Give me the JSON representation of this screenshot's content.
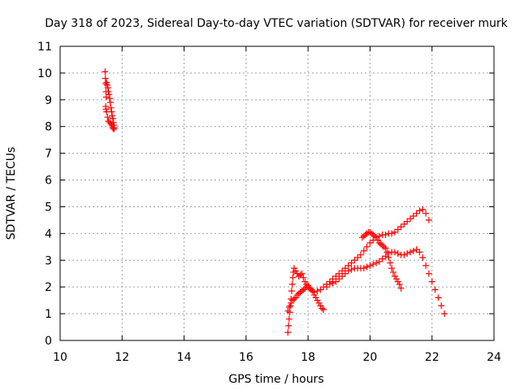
{
  "chart_data": {
    "type": "scatter",
    "title": "Day 318 of 2023, Sidereal Day-to-day VTEC variation (SDTVAR) for receiver murk",
    "xlabel": "GPS time / hours",
    "ylabel": "SDTVAR / TECUs",
    "xlim": [
      10,
      24
    ],
    "ylim": [
      0,
      11
    ],
    "xticks": [
      10,
      12,
      14,
      16,
      18,
      20,
      22,
      24
    ],
    "yticks": [
      0,
      1,
      2,
      3,
      4,
      5,
      6,
      7,
      8,
      9,
      10,
      11
    ],
    "grid": true,
    "marker": "+",
    "color": "#ff0000",
    "series": [
      {
        "x": [
          11.45,
          11.46,
          11.47,
          11.48,
          11.49,
          11.5,
          11.52,
          11.54,
          11.56,
          11.58,
          11.6,
          11.62,
          11.64,
          11.66,
          11.68,
          11.7,
          11.72,
          11.74,
          11.75,
          11.73,
          11.7,
          11.67,
          11.64,
          11.6,
          11.56,
          11.53,
          11.5,
          11.48,
          11.47
        ],
        "y": [
          10.05,
          9.8,
          9.6,
          9.3,
          9.1,
          9.65,
          9.55,
          9.45,
          9.3,
          9.2,
          9.05,
          8.9,
          8.7,
          8.55,
          8.4,
          8.3,
          8.15,
          8.05,
          7.95,
          7.9,
          7.95,
          8.05,
          8.1,
          8.15,
          8.2,
          8.35,
          8.55,
          8.65,
          8.75
        ]
      },
      {
        "x": [
          17.35,
          17.37,
          17.39,
          17.41,
          17.43,
          17.45,
          17.47,
          17.49,
          17.51,
          17.53,
          17.55,
          17.6,
          17.65,
          17.7,
          17.75,
          17.8,
          17.85,
          17.9,
          17.95,
          18.0,
          18.05,
          18.1,
          18.15,
          18.2,
          18.25,
          18.3,
          18.35,
          18.4,
          18.45,
          18.5
        ],
        "y": [
          0.3,
          0.55,
          0.8,
          1.05,
          1.3,
          1.55,
          1.85,
          2.1,
          2.35,
          2.55,
          2.7,
          2.6,
          2.5,
          2.4,
          2.45,
          2.5,
          2.35,
          2.2,
          2.1,
          2.05,
          1.95,
          1.9,
          1.85,
          1.7,
          1.6,
          1.5,
          1.4,
          1.3,
          1.2,
          1.15
        ]
      },
      {
        "x": [
          17.35,
          17.4,
          17.45,
          17.5,
          17.55,
          17.6,
          17.65,
          17.7,
          17.75,
          17.8,
          17.85,
          17.9,
          17.95,
          18.0,
          18.05,
          18.1,
          18.15,
          18.2,
          18.3,
          18.4,
          18.5,
          18.6,
          18.7,
          18.8,
          18.9,
          19.0,
          19.1,
          19.2,
          19.3,
          19.4,
          19.5,
          19.6,
          19.7,
          19.8,
          19.9,
          20.0,
          20.1,
          20.2,
          20.3,
          20.4,
          20.5,
          20.6,
          20.7,
          20.8,
          20.9,
          21.0,
          21.1,
          21.2,
          21.3,
          21.4,
          21.5,
          21.6,
          21.7,
          21.8,
          21.9
        ],
        "y": [
          1.1,
          1.25,
          1.4,
          1.5,
          1.55,
          1.6,
          1.7,
          1.75,
          1.8,
          1.85,
          1.9,
          1.95,
          2.0,
          2.0,
          1.95,
          1.9,
          1.85,
          1.8,
          1.85,
          1.9,
          2.0,
          2.1,
          2.2,
          2.3,
          2.4,
          2.5,
          2.6,
          2.7,
          2.8,
          2.9,
          3.0,
          3.1,
          3.2,
          3.35,
          3.5,
          3.65,
          3.75,
          3.85,
          3.9,
          3.95,
          3.95,
          4.0,
          4.0,
          4.05,
          4.15,
          4.25,
          4.35,
          4.45,
          4.55,
          4.65,
          4.75,
          4.85,
          4.9,
          4.75,
          4.5
        ]
      },
      {
        "x": [
          18.6,
          18.7,
          18.8,
          18.9,
          19.0,
          19.1,
          19.2,
          19.3,
          19.4,
          19.5,
          19.6,
          19.7,
          19.8,
          19.9,
          20.0,
          20.1,
          20.2,
          20.3,
          20.4,
          20.5,
          20.6,
          20.7,
          20.8,
          20.9,
          21.0,
          21.1,
          21.2,
          21.3,
          21.4,
          21.5,
          21.6,
          21.7,
          21.8,
          21.9,
          22.0,
          22.1,
          22.2,
          22.3,
          22.4
        ],
        "y": [
          2.0,
          2.1,
          2.15,
          2.2,
          2.3,
          2.4,
          2.5,
          2.6,
          2.65,
          2.7,
          2.7,
          2.7,
          2.7,
          2.75,
          2.8,
          2.85,
          2.9,
          2.95,
          3.05,
          3.15,
          3.25,
          3.3,
          3.3,
          3.25,
          3.2,
          3.2,
          3.25,
          3.3,
          3.35,
          3.4,
          3.3,
          3.1,
          2.8,
          2.5,
          2.2,
          1.9,
          1.6,
          1.3,
          1.0
        ]
      },
      {
        "x": [
          19.75,
          19.8,
          19.85,
          19.9,
          19.95,
          20.0,
          20.05,
          20.1,
          20.15,
          20.2,
          20.25,
          20.3,
          20.35,
          20.4,
          20.45,
          20.5,
          20.55,
          20.6,
          20.65,
          20.7,
          20.75,
          20.8,
          20.85,
          20.9,
          20.95,
          21.0
        ],
        "y": [
          3.85,
          3.9,
          3.95,
          4.0,
          4.05,
          4.05,
          4.0,
          3.95,
          3.9,
          3.85,
          3.75,
          3.65,
          3.6,
          3.55,
          3.5,
          3.45,
          3.3,
          3.1,
          2.9,
          2.7,
          2.55,
          2.4,
          2.3,
          2.2,
          2.1,
          1.95
        ]
      }
    ]
  }
}
